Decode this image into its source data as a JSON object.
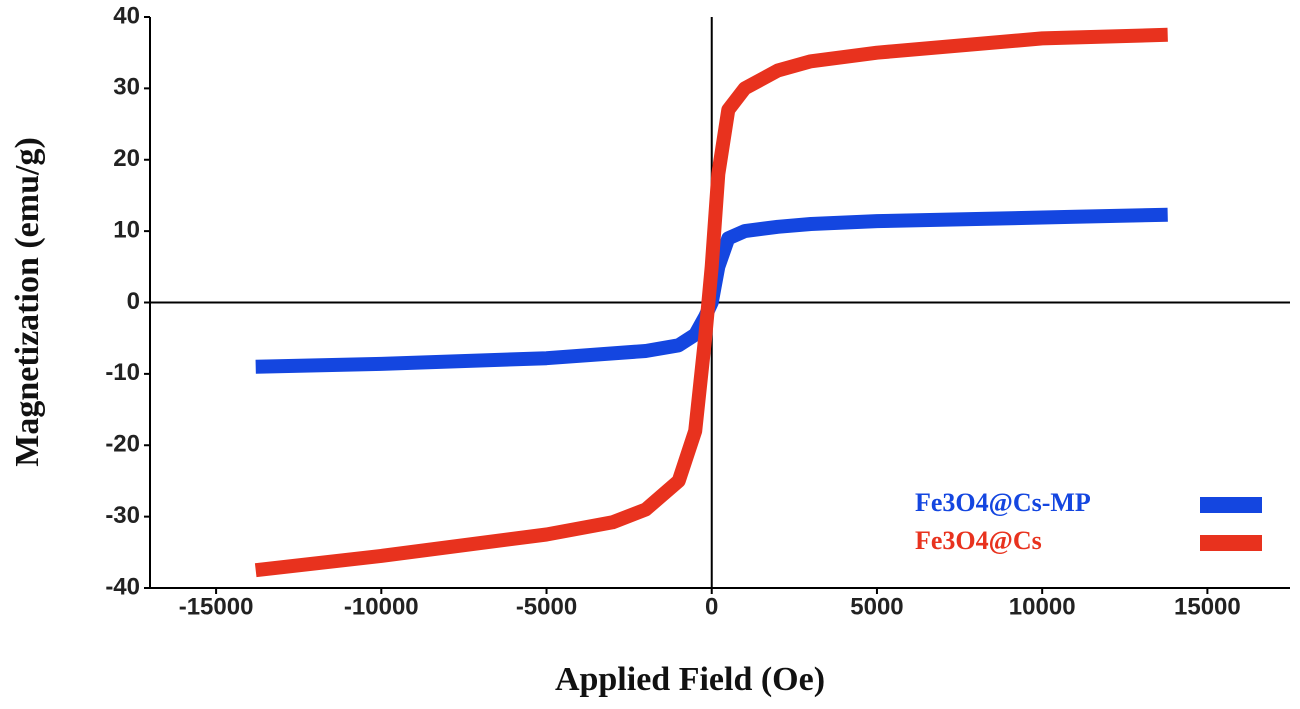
{
  "chart_data": {
    "type": "line",
    "x_label": "Applied Field (Oe)",
    "y_label": "Magnetization (emu/g)",
    "xlim": [
      -17000,
      17500
    ],
    "ylim": [
      -40,
      40
    ],
    "xticks": [
      -15000,
      -10000,
      -5000,
      0,
      5000,
      10000,
      15000
    ],
    "yticks": [
      -40,
      -30,
      -20,
      -10,
      0,
      10,
      20,
      30,
      40
    ],
    "grid": false,
    "legend": "lower right",
    "series": [
      {
        "name": "Fe3O4@Cs-MP",
        "color": "#1446e0",
        "x": [
          -13800,
          -10000,
          -5000,
          -2000,
          -1000,
          -500,
          -200,
          0,
          200,
          500,
          1000,
          2000,
          3000,
          5000,
          8000,
          11000,
          13800
        ],
        "values": [
          -9,
          -8.6,
          -7.8,
          -6.8,
          -6,
          -4.5,
          -2,
          0,
          5,
          9,
          10,
          10.6,
          11,
          11.4,
          11.7,
          12,
          12.3
        ]
      },
      {
        "name": "Fe3O4@Cs",
        "color": "#e8321e",
        "x": [
          -13800,
          -10000,
          -5000,
          -3000,
          -2000,
          -1000,
          -500,
          -200,
          0,
          200,
          500,
          1000,
          2000,
          3000,
          5000,
          10000,
          13800
        ],
        "values": [
          -37.5,
          -35.5,
          -32.5,
          -30.8,
          -29,
          -25,
          -18,
          -5,
          5,
          18,
          27,
          30,
          32.5,
          33.8,
          35,
          37,
          37.5
        ]
      }
    ]
  }
}
